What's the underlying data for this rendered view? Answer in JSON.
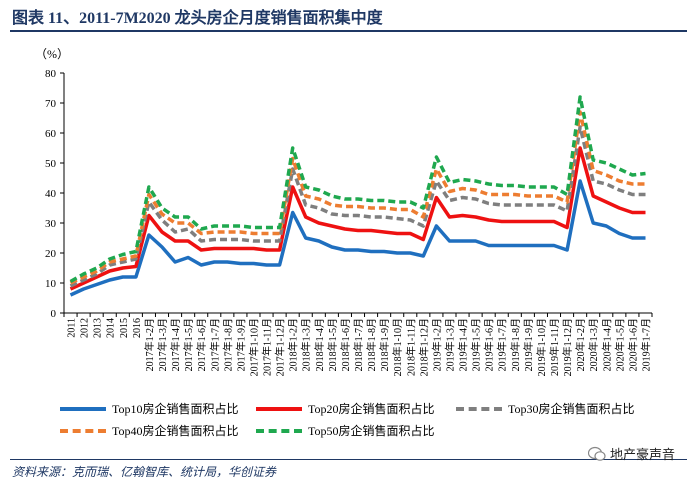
{
  "figure": {
    "title": "图表 11、2011-7M2020 龙头房企月度销售面积集中度",
    "source": "资料来源：克而瑞、亿翰智库、统计局，华创证券",
    "watermark": "地产豪声音"
  },
  "chart_data": {
    "type": "line",
    "ylabel": "（%）",
    "ylim": [
      0,
      80
    ],
    "yticks": [
      0,
      10,
      20,
      30,
      40,
      50,
      60,
      70,
      80
    ],
    "grid": false,
    "legend_position": "bottom",
    "categories": [
      "2011",
      "2012",
      "2013",
      "2014",
      "2015",
      "2016",
      "2017年1-2月",
      "2017年1-3月",
      "2017年1-4月",
      "2017年1-5月",
      "2017年1-6月",
      "2017年1-7月",
      "2017年1-8月",
      "2017年1-9月",
      "2017年1-10月",
      "2017年1-11月",
      "2017年1-12月",
      "2018年1-2月",
      "2018年1-3月",
      "2018年1-4月",
      "2018年1-5月",
      "2018年1-6月",
      "2018年1-7月",
      "2018年1-8月",
      "2018年1-9月",
      "2018年1-10月",
      "2018年1-11月",
      "2018年1-12月",
      "2019年1-2月",
      "2019年1-3月",
      "2019年1-4月",
      "2019年1-5月",
      "2019年1-6月",
      "2019年1-7月",
      "2019年1-8月",
      "2019年1-9月",
      "2019年1-10月",
      "2019年1-11月",
      "2019年1-12月",
      "2020年1-2月",
      "2020年1-3月",
      "2020年1-4月",
      "2020年1-5月",
      "2020年1-6月",
      "2019年1-7月"
    ],
    "series": [
      {
        "name": "Top10房企销售面积占比",
        "color": "#1f6fbf",
        "dash": "solid",
        "values": [
          6,
          8,
          9.5,
          11,
          12,
          12,
          26,
          22,
          17,
          18.5,
          16,
          17,
          17,
          16.5,
          16.5,
          16,
          16,
          33.5,
          25,
          24,
          22,
          21,
          21,
          20.5,
          20.5,
          20,
          20,
          19,
          29,
          24,
          24,
          24,
          22.5,
          22.5,
          22.5,
          22.5,
          22.5,
          22.5,
          21,
          44,
          30,
          29,
          26.5,
          25,
          25
        ]
      },
      {
        "name": "Top20房企销售面积占比",
        "color": "#ee1111",
        "dash": "solid",
        "values": [
          8,
          10,
          12,
          14,
          15,
          15.5,
          32.5,
          27,
          24,
          24,
          21,
          21.5,
          21.5,
          21.5,
          21.5,
          21,
          21,
          42,
          32,
          30,
          29,
          28,
          27.5,
          27.5,
          27,
          26.5,
          26.5,
          24.5,
          38.5,
          32,
          32.5,
          32,
          31,
          30.5,
          30.5,
          30.5,
          30.5,
          30.5,
          28.5,
          55,
          39,
          37,
          35,
          33.5,
          33.5
        ]
      },
      {
        "name": "Top30房企销售面积占比",
        "color": "#7f7f7f",
        "dash": "dashed",
        "values": [
          9,
          11,
          13,
          16,
          17,
          18,
          37,
          31,
          27,
          28,
          24,
          24.5,
          24.5,
          24.5,
          24,
          24,
          24,
          48,
          36,
          35,
          33,
          32.5,
          32.5,
          32,
          32,
          31.5,
          31,
          29,
          44,
          37.5,
          38.5,
          38,
          36.5,
          36,
          36,
          36,
          36,
          36,
          34,
          62,
          44,
          43,
          41,
          39.5,
          39.5
        ]
      },
      {
        "name": "Top40房企销售面积占比",
        "color": "#ed7d31",
        "dash": "dashed",
        "values": [
          10,
          12,
          14,
          17,
          18,
          19,
          39.5,
          33,
          30,
          30,
          26.5,
          27,
          27,
          27,
          26.5,
          26.5,
          26.5,
          51.5,
          39,
          38,
          36,
          35.5,
          35.5,
          35,
          35,
          34.5,
          34.5,
          32,
          48,
          40.5,
          41.5,
          41,
          39.5,
          39.5,
          39.5,
          39,
          39,
          39,
          37,
          67,
          47.5,
          46,
          44,
          43,
          43
        ]
      },
      {
        "name": "Top50房企销售面积占比",
        "color": "#1fa84f",
        "dash": "dashed",
        "values": [
          10.5,
          13,
          15,
          18,
          19.5,
          20.5,
          42,
          35,
          32,
          32,
          28,
          29,
          29,
          29,
          28.5,
          28.5,
          28.5,
          55,
          42,
          41,
          39,
          38,
          38,
          37.5,
          37.5,
          37,
          37,
          35,
          52,
          43.5,
          44.5,
          44,
          43,
          42.5,
          42.5,
          42,
          42,
          42,
          39.5,
          72,
          51,
          50,
          48,
          46,
          46.5
        ]
      }
    ]
  }
}
